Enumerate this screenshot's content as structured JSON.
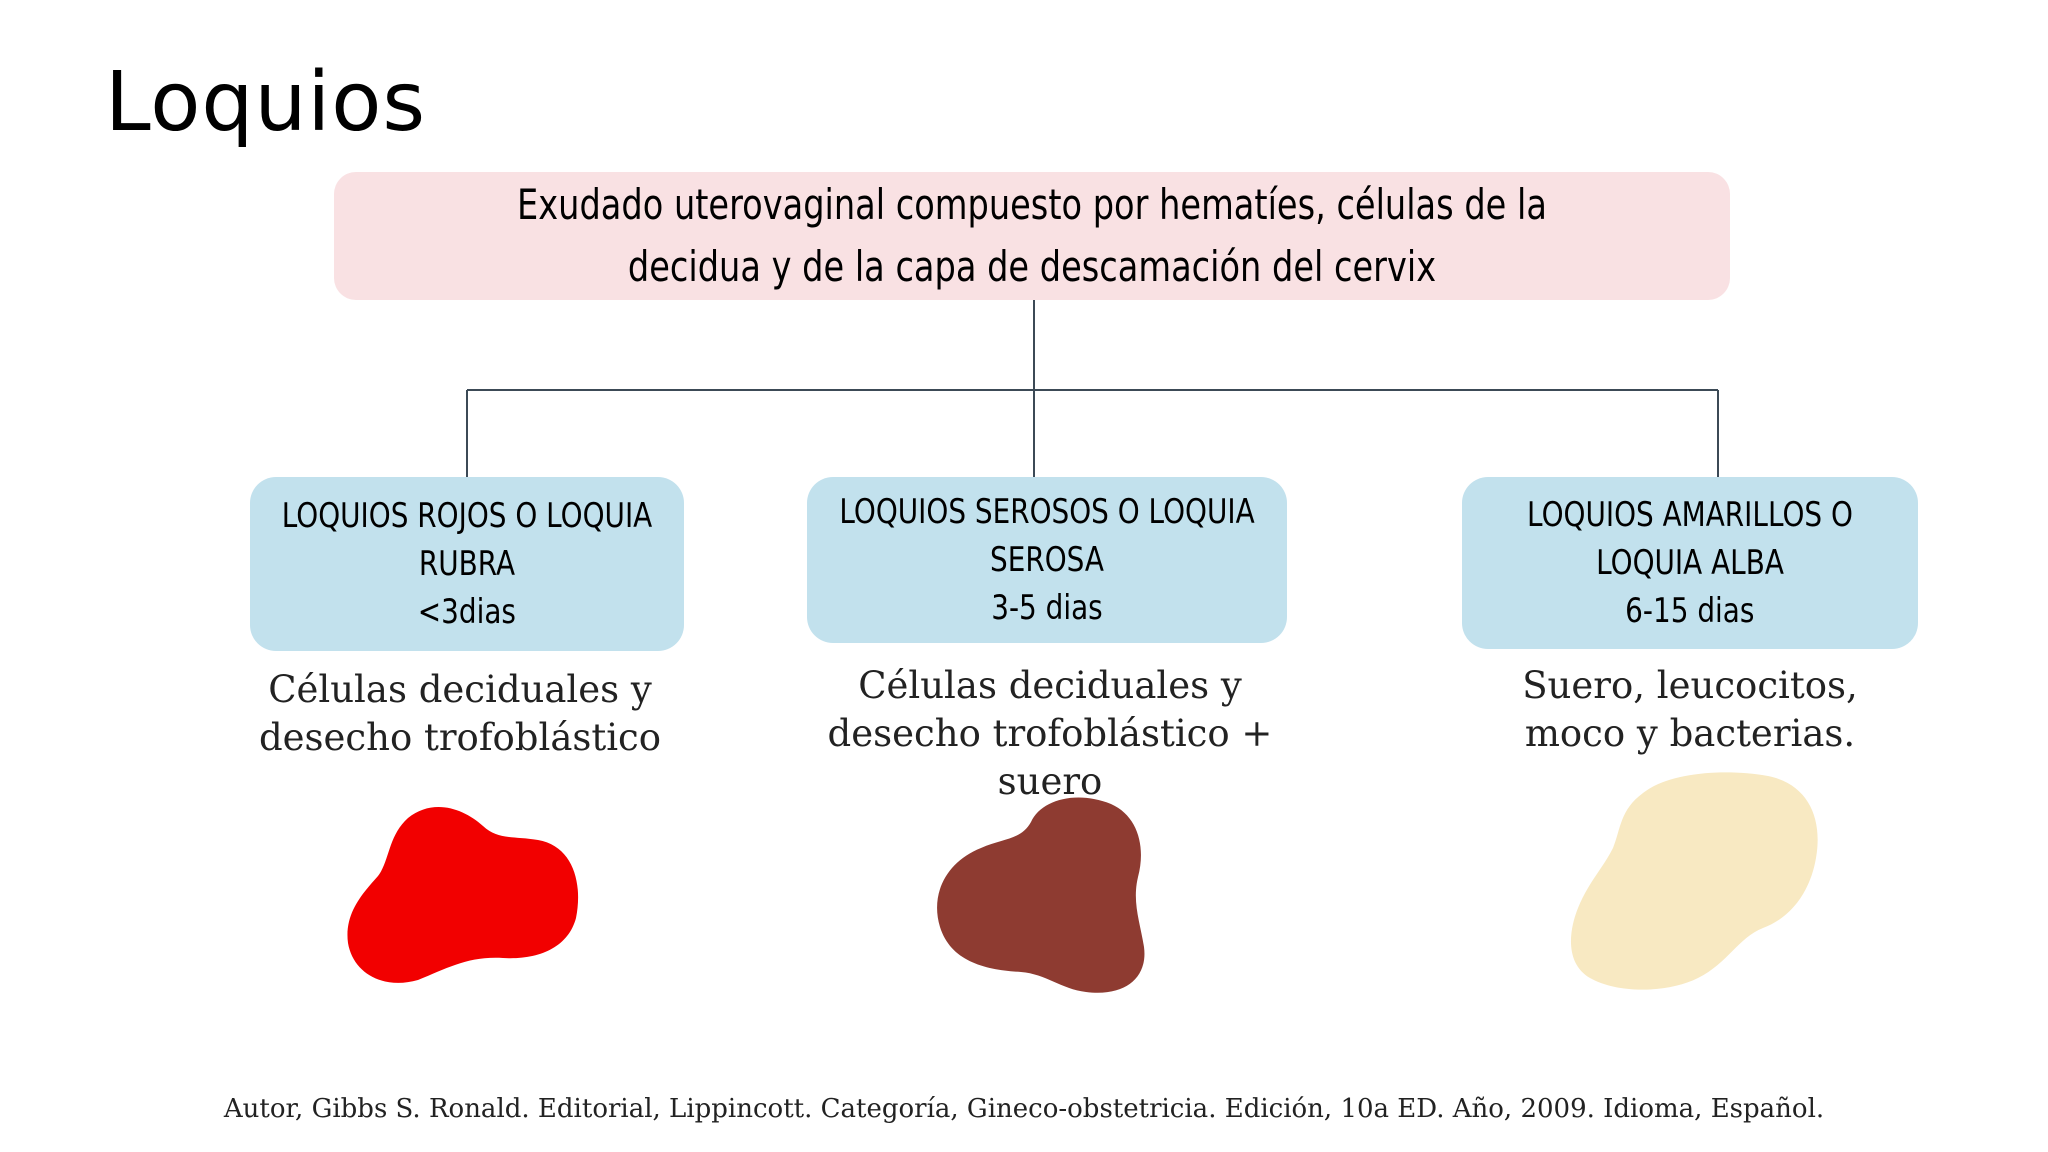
{
  "title": "Loquios",
  "definition": "Exudado uterovaginal compuesto por hematíes, células de la decidua y de la capa de descamación del cervix",
  "categories": [
    {
      "name": "LOQUIOS ROJOS O LOQUIA RUBRA",
      "days": "<3dias",
      "composition": "Células deciduales y desecho trofoblástico",
      "color": "#f20000"
    },
    {
      "name": "LOQUIOS SEROSOS O LOQUIA SEROSA",
      "days": "3-5 dias",
      "composition": "Células deciduales y desecho trofoblástico + suero",
      "color": "#8e3b31"
    },
    {
      "name": "LOQUIOS AMARILLOS O LOQUIA ALBA",
      "days": "6-15 dias",
      "composition": "Suero, leucocitos, moco y bacterias.",
      "color": "#f8e9c2"
    }
  ],
  "colors": {
    "definition_background": "#f9e1e3",
    "category_background": "#c2e1ed",
    "connector_line": "#3c4a56"
  },
  "citation": "Autor, Gibbs S. Ronald. Editorial, Lippincott. Categoría, Gineco-obstetricia. Edición, 10a ED. Año, 2009. Idioma, Español."
}
